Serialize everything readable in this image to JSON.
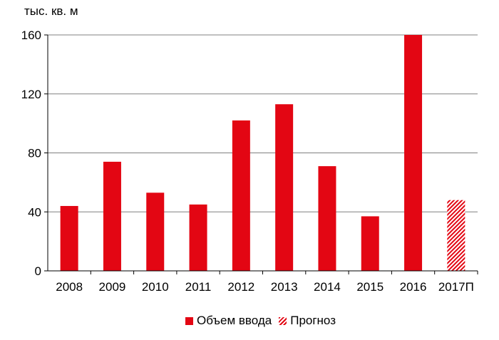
{
  "chart_data": {
    "type": "bar",
    "ylabel": "тыс. кв. м",
    "categories": [
      "2008",
      "2009",
      "2010",
      "2011",
      "2012",
      "2013",
      "2014",
      "2015",
      "2016",
      "2017П"
    ],
    "values": [
      44,
      74,
      53,
      45,
      102,
      113,
      71,
      37,
      160,
      48
    ],
    "forecast": [
      false,
      false,
      false,
      false,
      false,
      false,
      false,
      false,
      false,
      true
    ],
    "yticks": [
      "0",
      "40",
      "80",
      "120",
      "160"
    ],
    "ylim": [
      0,
      160
    ],
    "grid": true,
    "legend": {
      "position": "bottom",
      "items": [
        {
          "label": "Объем ввода",
          "style": "solid"
        },
        {
          "label": "Прогноз",
          "style": "hatched"
        }
      ]
    },
    "colors": {
      "bar": "#e30613",
      "grid": "#808080",
      "axis": "#000000"
    }
  }
}
